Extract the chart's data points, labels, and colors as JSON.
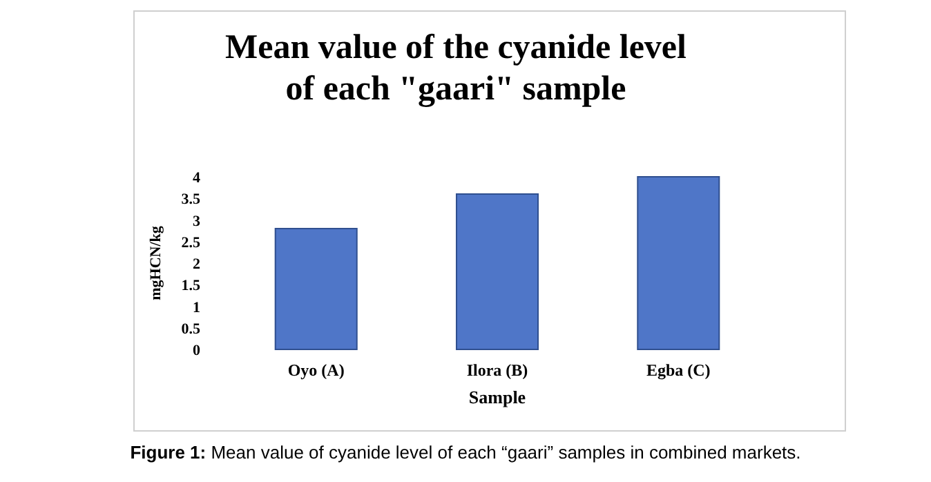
{
  "chart_data": {
    "type": "bar",
    "title": "Mean value of the cyanide level of each \"gaari\" sample",
    "xlabel": "Sample",
    "ylabel": "mgHCN/kg",
    "categories": [
      "Oyo (A)",
      "Ilora (B)",
      "Egba (C)"
    ],
    "values": [
      2.8,
      3.6,
      4.0
    ],
    "color": "#4f76c8",
    "ylim": [
      0,
      4
    ],
    "yticks": [
      0,
      0.5,
      1,
      1.5,
      2,
      2.5,
      3,
      3.5,
      4
    ],
    "grid": false,
    "annotations": [
      "Figure 1: Mean value of cyanide level of each “gaari” samples in combined markets."
    ]
  }
}
